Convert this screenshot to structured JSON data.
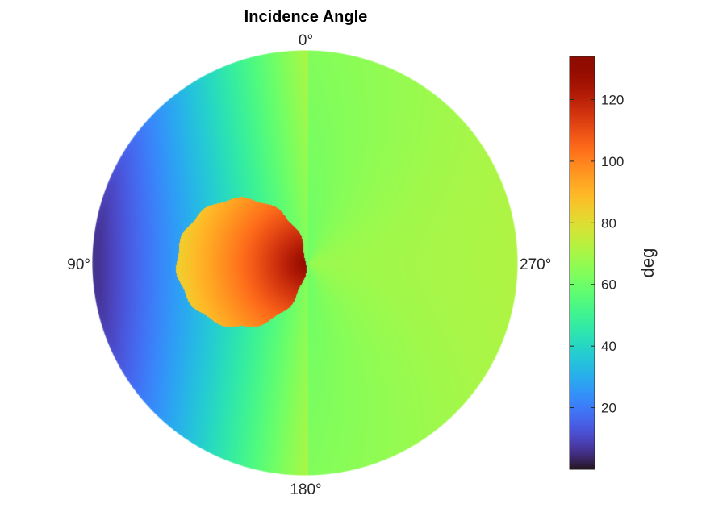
{
  "chart_data": {
    "type": "heatmap",
    "projection": "polar",
    "title": "Incidence Angle",
    "angle_labels": [
      {
        "angle": 0,
        "label": "0°"
      },
      {
        "angle": 90,
        "label": "90°"
      },
      {
        "angle": 180,
        "label": "180°"
      },
      {
        "angle": 270,
        "label": "270°"
      }
    ],
    "angle_direction": "counterclockwise from top",
    "colorbar": {
      "label": "deg",
      "range": [
        0,
        134
      ],
      "ticks": [
        20,
        40,
        60,
        80,
        100,
        120
      ],
      "tick_labels": [
        "20",
        "40",
        "60",
        "80",
        "100",
        "120"
      ],
      "colormap": "turbo",
      "placement": "right"
    },
    "value_range": [
      0,
      134
    ],
    "features": {
      "singular_point_angle": 270,
      "singular_point_radius": 0,
      "high_value_region": "circular blob on the 90° side near the centre, values 90–134",
      "background_values": "about 45–70 across most of the disk"
    }
  }
}
